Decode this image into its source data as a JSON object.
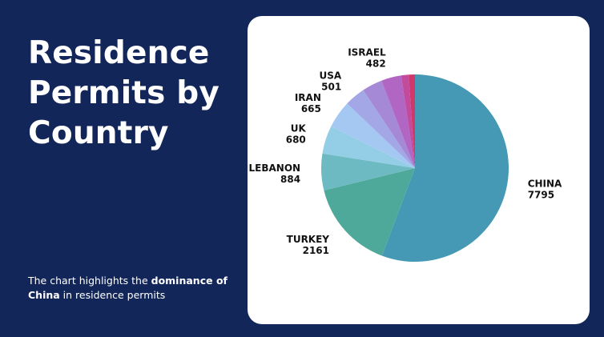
{
  "title": "Residence Permits by Country",
  "caption": {
    "prefix": "The chart highlights the ",
    "emphasis": "dominance of China",
    "suffix": " in residence permits"
  },
  "chart_data": {
    "type": "pie",
    "title": "",
    "slices": [
      {
        "label": "CHINA",
        "value": 7795,
        "color": "#4599b4",
        "labeled": true
      },
      {
        "label": "TURKEY",
        "value": 2161,
        "color": "#4fa99a",
        "labeled": true
      },
      {
        "label": "LEBANON",
        "value": 884,
        "color": "#6ebac3",
        "labeled": true
      },
      {
        "label": "UK",
        "value": 680,
        "color": "#94cde6",
        "labeled": true
      },
      {
        "label": "IRAN",
        "value": 665,
        "color": "#a5c8f3",
        "labeled": true
      },
      {
        "label": "USA",
        "value": 501,
        "color": "#a3a7e6",
        "labeled": true
      },
      {
        "label": "",
        "value": 490,
        "color": "#a588d6",
        "labeled": false
      },
      {
        "label": "ISRAEL",
        "value": 482,
        "color": "#b066c2",
        "labeled": true
      },
      {
        "label": "",
        "value": 180,
        "color": "#c24b9d",
        "labeled": false
      },
      {
        "label": "",
        "value": 150,
        "color": "#d0386b",
        "labeled": false
      }
    ]
  }
}
